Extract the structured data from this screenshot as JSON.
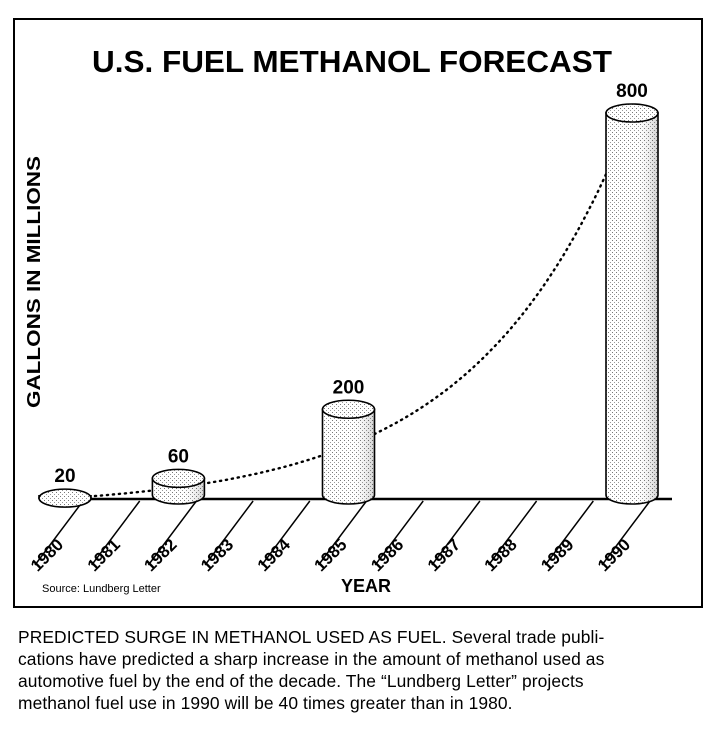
{
  "chart_data": {
    "type": "bar",
    "title": "U.S. FUEL METHANOL FORECAST",
    "xlabel": "YEAR",
    "ylabel": "GALLONS IN MILLIONS",
    "source": "Source: Lundberg Letter",
    "categories": [
      "1980",
      "1981",
      "1982",
      "1983",
      "1984",
      "1985",
      "1986",
      "1987",
      "1988",
      "1989",
      "1990"
    ],
    "bars": [
      {
        "year": "1980",
        "value": 20,
        "label": "20"
      },
      {
        "year": "1982",
        "value": 60,
        "label": "60"
      },
      {
        "year": "1985",
        "value": 200,
        "label": "200"
      },
      {
        "year": "1990",
        "value": 800,
        "label": "800"
      }
    ],
    "trend": "dotted exponential curve through bar tops",
    "ylim": [
      0,
      800
    ]
  },
  "caption": {
    "lead": "PREDICTED SURGE IN METHANOL USED AS FUEL.",
    "lines": [
      "Several trade publi-",
      "cations have predicted a sharp increase in the amount of methanol used as",
      "automotive fuel by the end of the decade. The “Lundberg Letter” projects",
      "methanol fuel use in 1990 will be 40 times greater than in 1980."
    ]
  }
}
